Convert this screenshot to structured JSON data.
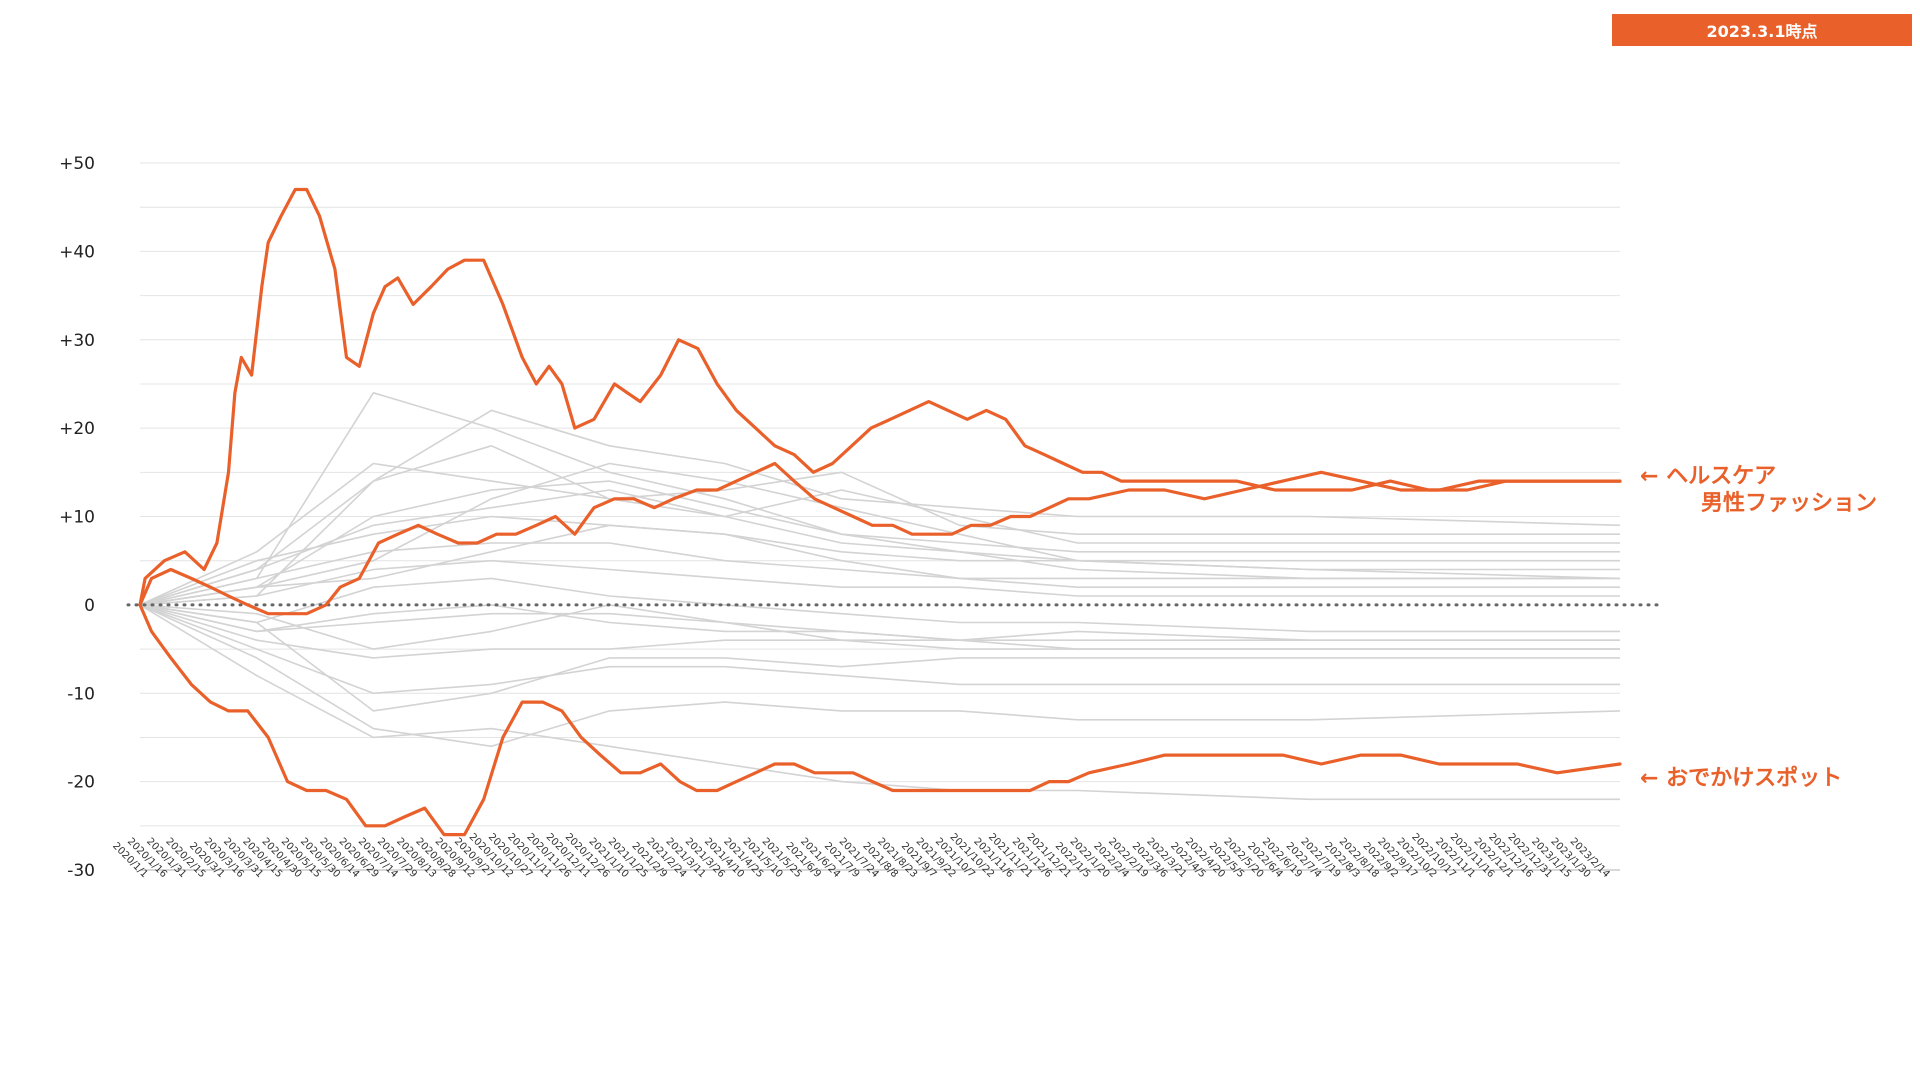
{
  "badge": "2023.3.1時点",
  "colors": {
    "highlight": "#e9602a",
    "background_line": "#d3d3d3",
    "grid": "#e4e4e4",
    "zero_line": "#666666"
  },
  "labels": {
    "healthcare": "← ヘルスケア",
    "mens_fashion": "男性ファッション",
    "outing": "← おでかけスポット"
  },
  "chart_data": {
    "type": "line",
    "title": "",
    "xlabel": "",
    "ylabel": "",
    "ylim": [
      -30,
      50
    ],
    "yticks": [
      "+50",
      "+40",
      "+30",
      "+20",
      "+10",
      "0",
      "-10",
      "-20",
      "-30"
    ],
    "ytick_values": [
      50,
      40,
      30,
      20,
      10,
      0,
      -10,
      -20,
      -30
    ],
    "grid": true,
    "x_range": [
      "2020/1/1",
      "2023/2/28"
    ],
    "xticks": [
      "2020/1/1",
      "2020/1/16",
      "2020/1/31",
      "2020/2/15",
      "2020/3/1",
      "2020/3/16",
      "2020/3/31",
      "2020/4/15",
      "2020/4/30",
      "2020/5/15",
      "2020/5/30",
      "2020/6/14",
      "2020/6/29",
      "2020/7/14",
      "2020/7/29",
      "2020/8/13",
      "2020/8/28",
      "2020/9/12",
      "2020/9/27",
      "2020/10/12",
      "2020/10/27",
      "2020/11/11",
      "2020/11/26",
      "2020/12/11",
      "2020/12/26",
      "2021/1/10",
      "2021/1/25",
      "2021/2/9",
      "2021/2/24",
      "2021/3/11",
      "2021/3/26",
      "2021/4/10",
      "2021/4/25",
      "2021/5/10",
      "2021/5/25",
      "2021/6/9",
      "2021/6/24",
      "2021/7/9",
      "2021/7/24",
      "2021/8/8",
      "2021/8/23",
      "2021/9/7",
      "2021/9/22",
      "2021/10/7",
      "2021/10/22",
      "2021/11/6",
      "2021/11/21",
      "2021/12/6",
      "2021/12/21",
      "2022/1/5",
      "2022/1/20",
      "2022/2/4",
      "2022/2/19",
      "2022/3/6",
      "2022/3/21",
      "2022/4/5",
      "2022/4/20",
      "2022/5/5",
      "2022/5/20",
      "2022/6/4",
      "2022/6/19",
      "2022/7/4",
      "2022/7/19",
      "2022/8/3",
      "2022/8/18",
      "2022/9/2",
      "2022/9/17",
      "2022/10/2",
      "2022/10/17",
      "2022/11/1",
      "2022/11/16",
      "2022/12/1",
      "2022/12/16",
      "2022/12/31",
      "2023/1/15",
      "2023/1/30",
      "2023/2/14"
    ],
    "series": [
      {
        "name": "ヘルスケア",
        "highlight": true,
        "x": [
          "2020/1/1",
          "2020/1/5",
          "2020/1/20",
          "2020/2/5",
          "2020/2/20",
          "2020/3/1",
          "2020/3/10",
          "2020/3/15",
          "2020/3/20",
          "2020/3/28",
          "2020/4/5",
          "2020/4/10",
          "2020/4/20",
          "2020/5/1",
          "2020/5/10",
          "2020/5/20",
          "2020/6/1",
          "2020/6/10",
          "2020/6/20",
          "2020/7/1",
          "2020/7/10",
          "2020/7/20",
          "2020/8/1",
          "2020/8/15",
          "2020/8/28",
          "2020/9/10",
          "2020/9/25",
          "2020/10/10",
          "2020/10/25",
          "2020/11/5",
          "2020/11/15",
          "2020/11/25",
          "2020/12/5",
          "2020/12/20",
          "2021/1/5",
          "2021/1/15",
          "2021/1/25",
          "2021/2/10",
          "2021/2/24",
          "2021/3/11",
          "2021/3/26",
          "2021/4/10",
          "2021/4/25",
          "2021/5/10",
          "2021/5/25",
          "2021/6/9",
          "2021/6/24",
          "2021/7/9",
          "2021/7/24",
          "2021/8/8",
          "2021/8/23",
          "2021/9/7",
          "2021/9/22",
          "2021/10/7",
          "2021/10/22",
          "2021/11/6",
          "2021/11/21",
          "2021/12/6",
          "2021/12/21",
          "2022/1/5",
          "2022/1/20",
          "2022/2/4",
          "2022/3/6",
          "2022/4/5",
          "2022/5/5",
          "2022/6/4",
          "2022/7/4",
          "2022/8/3",
          "2022/9/2",
          "2022/10/2",
          "2022/11/1",
          "2022/12/1",
          "2022/12/31",
          "2023/1/30",
          "2023/2/28"
        ],
        "y": [
          0,
          3,
          5,
          6,
          4,
          7,
          15,
          24,
          28,
          26,
          36,
          41,
          44,
          47,
          47,
          44,
          38,
          28,
          27,
          33,
          36,
          37,
          34,
          36,
          38,
          39,
          39,
          34,
          28,
          25,
          27,
          25,
          20,
          21,
          25,
          24,
          23,
          26,
          30,
          29,
          25,
          22,
          20,
          18,
          17,
          15,
          16,
          18,
          20,
          21,
          22,
          23,
          22,
          21,
          22,
          21,
          18,
          17,
          16,
          15,
          15,
          14,
          14,
          14,
          14,
          13,
          13,
          13,
          14,
          13,
          13,
          14,
          14,
          14,
          14
        ]
      },
      {
        "name": "男性ファッション",
        "highlight": true,
        "x": [
          "2020/1/1",
          "2020/1/10",
          "2020/1/25",
          "2020/2/10",
          "2020/2/25",
          "2020/3/10",
          "2020/3/25",
          "2020/4/10",
          "2020/4/25",
          "2020/5/10",
          "2020/5/25",
          "2020/6/5",
          "2020/6/20",
          "2020/7/5",
          "2020/7/20",
          "2020/8/5",
          "2020/8/20",
          "2020/9/5",
          "2020/9/20",
          "2020/10/5",
          "2020/10/20",
          "2020/11/5",
          "2020/11/20",
          "2020/12/5",
          "2020/12/20",
          "2021/1/5",
          "2021/1/20",
          "2021/2/5",
          "2021/2/20",
          "2021/3/10",
          "2021/3/26",
          "2021/4/10",
          "2021/4/25",
          "2021/5/10",
          "2021/5/25",
          "2021/6/10",
          "2021/6/25",
          "2021/7/10",
          "2021/7/25",
          "2021/8/10",
          "2021/8/25",
          "2021/9/10",
          "2021/9/25",
          "2021/10/10",
          "2021/10/25",
          "2021/11/10",
          "2021/11/25",
          "2021/12/10",
          "2021/12/25",
          "2022/1/10",
          "2022/2/10",
          "2022/3/10",
          "2022/4/10",
          "2022/5/10",
          "2022/6/10",
          "2022/7/10",
          "2022/8/10",
          "2022/9/10",
          "2022/10/10",
          "2022/11/10",
          "2022/12/10",
          "2023/1/10",
          "2023/2/28"
        ],
        "y": [
          0,
          3,
          4,
          3,
          2,
          1,
          0,
          -1,
          -1,
          -1,
          0,
          2,
          3,
          7,
          8,
          9,
          8,
          7,
          7,
          8,
          8,
          9,
          10,
          8,
          11,
          12,
          12,
          11,
          12,
          13,
          13,
          14,
          15,
          16,
          14,
          12,
          11,
          10,
          9,
          9,
          8,
          8,
          8,
          9,
          9,
          10,
          10,
          11,
          12,
          12,
          13,
          13,
          12,
          13,
          14,
          15,
          14,
          13,
          13,
          14,
          14,
          14,
          14
        ]
      },
      {
        "name": "おでかけスポット",
        "highlight": true,
        "x": [
          "2020/1/1",
          "2020/1/10",
          "2020/1/25",
          "2020/2/10",
          "2020/2/25",
          "2020/3/10",
          "2020/3/25",
          "2020/4/10",
          "2020/4/25",
          "2020/5/10",
          "2020/5/25",
          "2020/6/10",
          "2020/6/25",
          "2020/7/10",
          "2020/7/25",
          "2020/8/10",
          "2020/8/25",
          "2020/9/10",
          "2020/9/25",
          "2020/10/10",
          "2020/10/25",
          "2020/11/10",
          "2020/11/25",
          "2020/12/10",
          "2020/12/25",
          "2021/1/10",
          "2021/1/25",
          "2021/2/10",
          "2021/2/25",
          "2021/3/10",
          "2021/3/26",
          "2021/4/10",
          "2021/4/25",
          "2021/5/10",
          "2021/5/25",
          "2021/6/10",
          "2021/6/25",
          "2021/7/10",
          "2021/7/25",
          "2021/8/10",
          "2021/8/25",
          "2021/9/10",
          "2021/9/25",
          "2021/10/10",
          "2021/10/25",
          "2021/11/10",
          "2021/11/25",
          "2021/12/10",
          "2021/12/25",
          "2022/1/10",
          "2022/2/10",
          "2022/3/10",
          "2022/4/10",
          "2022/5/10",
          "2022/6/10",
          "2022/7/10",
          "2022/8/10",
          "2022/9/10",
          "2022/10/10",
          "2022/11/10",
          "2022/12/10",
          "2023/1/10",
          "2023/2/28"
        ],
        "y": [
          0,
          -3,
          -6,
          -9,
          -11,
          -12,
          -12,
          -15,
          -20,
          -21,
          -21,
          -22,
          -25,
          -25,
          -24,
          -23,
          -26,
          -26,
          -22,
          -15,
          -11,
          -11,
          -12,
          -15,
          -17,
          -19,
          -19,
          -18,
          -20,
          -21,
          -21,
          -20,
          -19,
          -18,
          -18,
          -19,
          -19,
          -19,
          -20,
          -21,
          -21,
          -21,
          -21,
          -21,
          -21,
          -21,
          -21,
          -20,
          -20,
          -19,
          -18,
          -17,
          -17,
          -17,
          -17,
          -18,
          -17,
          -17,
          -18,
          -18,
          -18,
          -19,
          -18
        ]
      },
      {
        "name": "",
        "x": [
          "2020/1/1",
          "2020/4/1",
          "2020/7/1",
          "2020/10/1",
          "2021/1/1",
          "2021/4/1",
          "2021/7/1",
          "2021/10/1",
          "2022/1/1",
          "2022/7/1",
          "2023/2/28"
        ],
        "y": [
          0,
          4,
          14,
          22,
          18,
          16,
          12,
          11,
          10,
          10,
          9
        ]
      },
      {
        "name": "",
        "x": [
          "2020/1/1",
          "2020/4/1",
          "2020/7/1",
          "2020/10/1",
          "2021/1/1",
          "2021/4/1",
          "2021/7/1",
          "2021/10/1",
          "2022/1/1",
          "2022/7/1",
          "2023/2/28"
        ],
        "y": [
          0,
          6,
          16,
          14,
          12,
          13,
          15,
          9,
          8,
          8,
          8
        ]
      },
      {
        "name": "",
        "x": [
          "2020/1/1",
          "2020/4/1",
          "2020/7/1",
          "2020/10/1",
          "2021/1/1",
          "2021/4/1",
          "2021/7/1",
          "2021/10/1",
          "2022/1/1",
          "2022/7/1",
          "2023/2/28"
        ],
        "y": [
          0,
          2,
          10,
          13,
          14,
          11,
          8,
          7,
          6,
          6,
          6
        ]
      },
      {
        "name": "",
        "x": [
          "2020/1/1",
          "2020/4/1",
          "2020/7/1",
          "2020/10/1",
          "2021/1/1",
          "2021/4/1",
          "2021/7/1",
          "2021/10/1",
          "2022/1/1",
          "2022/7/1",
          "2023/2/28"
        ],
        "y": [
          0,
          5,
          8,
          10,
          9,
          8,
          6,
          5,
          5,
          4,
          4
        ]
      },
      {
        "name": "",
        "x": [
          "2020/1/1",
          "2020/4/1",
          "2020/7/1",
          "2020/10/1",
          "2021/1/1",
          "2021/4/1",
          "2021/7/1",
          "2021/10/1",
          "2022/1/1",
          "2022/7/1",
          "2023/2/28"
        ],
        "y": [
          0,
          3,
          6,
          7,
          7,
          5,
          4,
          3,
          3,
          3,
          3
        ]
      },
      {
        "name": "",
        "x": [
          "2020/1/1",
          "2020/4/1",
          "2020/7/1",
          "2020/10/1",
          "2021/1/1",
          "2021/4/1",
          "2021/7/1",
          "2021/10/1",
          "2022/1/1",
          "2022/7/1",
          "2023/2/28"
        ],
        "y": [
          0,
          1,
          4,
          5,
          4,
          3,
          2,
          2,
          1,
          1,
          1
        ]
      },
      {
        "name": "",
        "x": [
          "2020/1/1",
          "2020/4/1",
          "2020/7/1",
          "2020/10/1",
          "2021/1/1",
          "2021/4/1",
          "2021/7/1",
          "2021/10/1",
          "2022/1/1",
          "2022/7/1",
          "2023/2/28"
        ],
        "y": [
          0,
          -2,
          2,
          3,
          1,
          0,
          -1,
          -2,
          -2,
          -3,
          -3
        ]
      },
      {
        "name": "",
        "x": [
          "2020/1/1",
          "2020/4/1",
          "2020/7/1",
          "2020/10/1",
          "2021/1/1",
          "2021/4/1",
          "2021/7/1",
          "2021/10/1",
          "2022/1/1",
          "2022/7/1",
          "2023/2/28"
        ],
        "y": [
          0,
          -3,
          -1,
          0,
          -2,
          -3,
          -3,
          -4,
          -4,
          -4,
          -4
        ]
      },
      {
        "name": "",
        "x": [
          "2020/1/1",
          "2020/4/1",
          "2020/7/1",
          "2020/10/1",
          "2021/1/1",
          "2021/4/1",
          "2021/7/1",
          "2021/10/1",
          "2022/1/1",
          "2022/7/1",
          "2023/2/28"
        ],
        "y": [
          0,
          -4,
          -6,
          -5,
          -5,
          -4,
          -4,
          -5,
          -5,
          -5,
          -5
        ]
      },
      {
        "name": "",
        "x": [
          "2020/1/1",
          "2020/4/1",
          "2020/7/1",
          "2020/10/1",
          "2021/1/1",
          "2021/4/1",
          "2021/7/1",
          "2021/10/1",
          "2022/1/1",
          "2022/7/1",
          "2023/2/28"
        ],
        "y": [
          0,
          -5,
          -10,
          -9,
          -7,
          -7,
          -8,
          -9,
          -9,
          -9,
          -9
        ]
      },
      {
        "name": "",
        "x": [
          "2020/1/1",
          "2020/4/1",
          "2020/7/1",
          "2020/10/1",
          "2021/1/1",
          "2021/4/1",
          "2021/7/1",
          "2021/10/1",
          "2022/1/1",
          "2022/7/1",
          "2023/2/28"
        ],
        "y": [
          0,
          -6,
          -14,
          -16,
          -12,
          -11,
          -12,
          -12,
          -13,
          -13,
          -12
        ]
      },
      {
        "name": "",
        "x": [
          "2020/1/1",
          "2020/4/1",
          "2020/7/1",
          "2020/10/1",
          "2021/1/1",
          "2021/4/1",
          "2021/7/1",
          "2021/10/1",
          "2022/1/1",
          "2022/7/1",
          "2023/2/28"
        ],
        "y": [
          0,
          -8,
          -15,
          -14,
          -16,
          -18,
          -20,
          -21,
          -21,
          -22,
          -22
        ]
      },
      {
        "name": "",
        "x": [
          "2020/1/1",
          "2020/4/1",
          "2020/7/1",
          "2020/10/1",
          "2021/1/1",
          "2021/4/1",
          "2021/7/1",
          "2021/10/1",
          "2022/1/1",
          "2022/7/1",
          "2023/2/28"
        ],
        "y": [
          0,
          3,
          24,
          20,
          15,
          12,
          8,
          6,
          4,
          3,
          3
        ]
      },
      {
        "name": "",
        "x": [
          "2020/1/1",
          "2020/4/1",
          "2020/7/1",
          "2020/10/1",
          "2021/1/1",
          "2021/4/1",
          "2021/7/1",
          "2021/10/1",
          "2022/1/1",
          "2022/7/1",
          "2023/2/28"
        ],
        "y": [
          0,
          2,
          5,
          12,
          16,
          14,
          11,
          8,
          5,
          4,
          3
        ]
      },
      {
        "name": "",
        "x": [
          "2020/1/1",
          "2020/4/1",
          "2020/7/1",
          "2020/10/1",
          "2021/1/1",
          "2021/4/1",
          "2021/7/1",
          "2021/10/1",
          "2022/1/1",
          "2022/7/1",
          "2023/2/28"
        ],
        "y": [
          0,
          -1,
          -5,
          -3,
          0,
          -2,
          -4,
          -4,
          -3,
          -4,
          -4
        ]
      },
      {
        "name": "",
        "x": [
          "2020/1/1",
          "2020/4/1",
          "2020/7/1",
          "2020/10/1",
          "2021/1/1",
          "2021/4/1",
          "2021/7/1",
          "2021/10/1",
          "2022/1/1",
          "2022/7/1",
          "2023/2/28"
        ],
        "y": [
          0,
          4,
          9,
          11,
          13,
          10,
          7,
          6,
          5,
          5,
          5
        ]
      },
      {
        "name": "",
        "x": [
          "2020/1/1",
          "2020/4/1",
          "2020/7/1",
          "2020/10/1",
          "2021/1/1",
          "2021/4/1",
          "2021/7/1",
          "2021/10/1",
          "2022/1/1",
          "2022/7/1",
          "2023/2/28"
        ],
        "y": [
          0,
          -2,
          -12,
          -10,
          -6,
          -6,
          -7,
          -6,
          -6,
          -6,
          -6
        ]
      },
      {
        "name": "",
        "x": [
          "2020/1/1",
          "2020/4/1",
          "2020/7/1",
          "2020/10/1",
          "2021/1/1",
          "2021/4/1",
          "2021/7/1",
          "2021/10/1",
          "2022/1/1",
          "2022/7/1",
          "2023/2/28"
        ],
        "y": [
          0,
          1,
          14,
          18,
          12,
          10,
          13,
          10,
          7,
          7,
          7
        ]
      },
      {
        "name": "",
        "x": [
          "2020/1/1",
          "2020/4/1",
          "2020/7/1",
          "2020/10/1",
          "2021/1/1",
          "2021/4/1",
          "2021/7/1",
          "2021/10/1",
          "2022/1/1",
          "2022/7/1",
          "2023/2/28"
        ],
        "y": [
          0,
          2,
          3,
          6,
          9,
          8,
          5,
          3,
          2,
          2,
          2
        ]
      },
      {
        "name": "",
        "x": [
          "2020/1/1",
          "2020/4/1",
          "2020/7/1",
          "2020/10/1",
          "2021/1/1",
          "2021/4/1",
          "2021/7/1",
          "2021/10/1",
          "2022/1/1",
          "2022/7/1",
          "2023/2/28"
        ],
        "y": [
          0,
          -3,
          -2,
          -1,
          -1,
          -2,
          -3,
          -4,
          -5,
          -5,
          -5
        ]
      }
    ]
  }
}
